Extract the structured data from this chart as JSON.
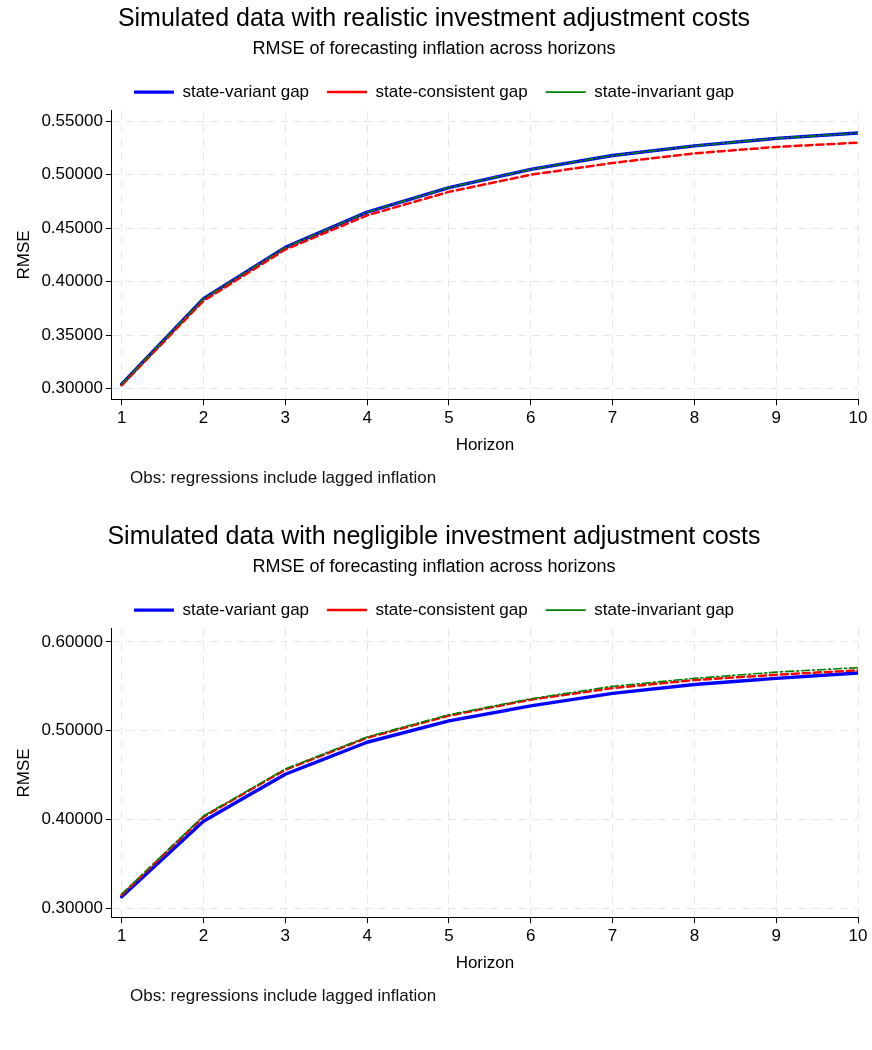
{
  "chart_data": [
    {
      "type": "line",
      "title": "Simulated data with realistic investment adjustment costs",
      "subtitle": "RMSE of forecasting inflation across horizons",
      "xlabel": "Horizon",
      "ylabel": "RMSE",
      "x": [
        1,
        2,
        3,
        4,
        5,
        6,
        7,
        8,
        9,
        10
      ],
      "xlim": [
        0.88,
        10
      ],
      "xticks": [
        1,
        2,
        3,
        4,
        5,
        6,
        7,
        8,
        9,
        10
      ],
      "ylim": [
        0.29,
        0.56
      ],
      "yticks": [
        {
          "value": 0.3,
          "label": "0.30000"
        },
        {
          "value": 0.35,
          "label": "0.35000"
        },
        {
          "value": 0.4,
          "label": "0.40000"
        },
        {
          "value": 0.45,
          "label": "0.45000"
        },
        {
          "value": 0.5,
          "label": "0.50000"
        },
        {
          "value": 0.55,
          "label": "0.55000"
        }
      ],
      "grid": true,
      "legend": "top",
      "marker": "none",
      "series": [
        {
          "name": "state-variant gap",
          "color": "#0000ff",
          "line_style": "solid",
          "values": [
            0.304,
            0.384,
            0.432,
            0.465,
            0.488,
            0.505,
            0.518,
            0.527,
            0.534,
            0.539
          ]
        },
        {
          "name": "state-consistent gap",
          "color": "#ff0000",
          "line_style": "dashed",
          "values": [
            0.303,
            0.382,
            0.43,
            0.462,
            0.484,
            0.5,
            0.511,
            0.52,
            0.526,
            0.53
          ]
        },
        {
          "name": "state-invariant gap",
          "color": "#008000",
          "line_style": "dashdot",
          "values": [
            0.304,
            0.384,
            0.432,
            0.465,
            0.488,
            0.505,
            0.518,
            0.527,
            0.534,
            0.539
          ]
        }
      ],
      "annotations": [
        "Obs: regressions include lagged inflation"
      ]
    },
    {
      "type": "line",
      "title": "Simulated data with negligible investment adjustment costs",
      "subtitle": "RMSE of forecasting inflation across horizons",
      "xlabel": "Horizon",
      "ylabel": "RMSE",
      "x": [
        1,
        2,
        3,
        4,
        5,
        6,
        7,
        8,
        9,
        10
      ],
      "xlim": [
        0.88,
        10
      ],
      "xticks": [
        1,
        2,
        3,
        4,
        5,
        6,
        7,
        8,
        9,
        10
      ],
      "ylim": [
        0.29,
        0.615
      ],
      "yticks": [
        {
          "value": 0.3,
          "label": "0.30000"
        },
        {
          "value": 0.4,
          "label": "0.40000"
        },
        {
          "value": 0.5,
          "label": "0.50000"
        },
        {
          "value": 0.6,
          "label": "0.60000"
        }
      ],
      "grid": true,
      "legend": "top",
      "marker": "none",
      "series": [
        {
          "name": "state-variant gap",
          "color": "#0000ff",
          "line_style": "solid",
          "values": [
            0.313,
            0.398,
            0.451,
            0.487,
            0.511,
            0.528,
            0.542,
            0.552,
            0.559,
            0.565
          ]
        },
        {
          "name": "state-consistent gap",
          "color": "#ff0000",
          "line_style": "dashed",
          "values": [
            0.315,
            0.403,
            0.456,
            0.492,
            0.517,
            0.535,
            0.548,
            0.557,
            0.563,
            0.568
          ]
        },
        {
          "name": "state-invariant gap",
          "color": "#008000",
          "line_style": "dashdot",
          "values": [
            0.316,
            0.404,
            0.457,
            0.493,
            0.518,
            0.536,
            0.55,
            0.559,
            0.566,
            0.571
          ]
        }
      ],
      "annotations": [
        "Obs: regressions include lagged inflation"
      ]
    }
  ]
}
